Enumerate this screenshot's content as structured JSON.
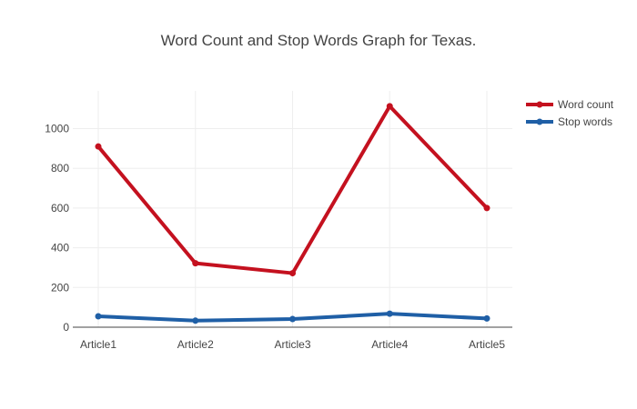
{
  "chart_data": {
    "type": "line",
    "title": "Word Count and Stop Words Graph for Texas.",
    "xlabel": "",
    "ylabel": "",
    "categories": [
      "Article1",
      "Article2",
      "Article3",
      "Article4",
      "Article5"
    ],
    "series": [
      {
        "name": "Word count",
        "values": [
          910,
          322,
          272,
          1113,
          600
        ],
        "color": "#c4111f"
      },
      {
        "name": "Stop words",
        "values": [
          55,
          33,
          41,
          68,
          44
        ],
        "color": "#1f5fa6"
      }
    ],
    "ylim": [
      0,
      1190
    ],
    "yticks": [
      0,
      200,
      400,
      600,
      800,
      1000
    ],
    "grid": true,
    "legend_position": "top-right"
  }
}
